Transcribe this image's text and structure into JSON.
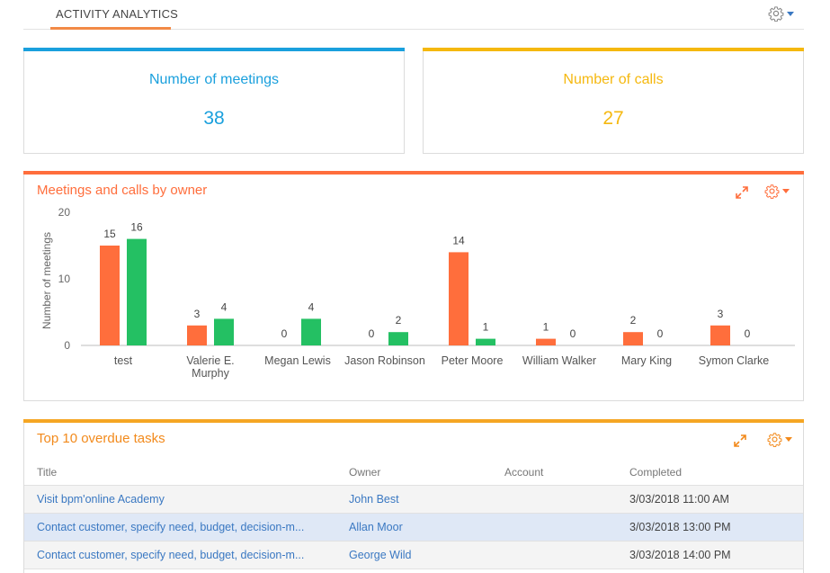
{
  "header": {
    "tab_label": "ACTIVITY ANALYTICS"
  },
  "colors": {
    "meetings": "#1aa0dd",
    "calls": "#f5b80f",
    "orange": "#ff6e3c",
    "green": "#24c063",
    "accent": "#f28a46",
    "link": "#3a78c2"
  },
  "metrics": [
    {
      "title": "Number of meetings",
      "value": "38",
      "color": "#1aa0dd"
    },
    {
      "title": "Number of calls",
      "value": "27",
      "color": "#f5b80f"
    }
  ],
  "chart_widget": {
    "title": "Meetings and calls by owner"
  },
  "chart_data": {
    "type": "bar",
    "ylabel": "Number of meetings",
    "ylim": [
      0,
      20
    ],
    "yticks": [
      "0",
      "10",
      "20"
    ],
    "categories": [
      "test",
      "Valerie E. Murphy",
      "Megan Lewis",
      "Jason Robinson",
      "Peter Moore",
      "William Walker",
      "Mary King",
      "Symon Clarke"
    ],
    "series": [
      {
        "values": [
          15,
          3,
          0,
          0,
          14,
          1,
          2,
          3
        ],
        "color": "#ff6e3c"
      },
      {
        "values": [
          16,
          4,
          4,
          2,
          1,
          0,
          0,
          0
        ],
        "color": "#24c063"
      }
    ],
    "grid": false
  },
  "tasks_widget": {
    "title": "Top 10 overdue tasks",
    "columns": {
      "title": "Title",
      "owner": "Owner",
      "account": "Account",
      "completed": "Completed"
    },
    "rows": [
      {
        "title": "Visit bpm'online Academy",
        "owner": "John Best",
        "account": "",
        "completed": "3/03/2018 11:00 AM",
        "selected": false
      },
      {
        "title": "Contact customer, specify need, budget, decision-m...",
        "owner": "Allan Moor",
        "account": "",
        "completed": "3/03/2018 13:00 PM",
        "selected": true
      },
      {
        "title": "Contact customer, specify need, budget, decision-m...",
        "owner": "George Wild",
        "account": "",
        "completed": "3/03/2018 14:00 PM",
        "selected": false
      }
    ]
  }
}
